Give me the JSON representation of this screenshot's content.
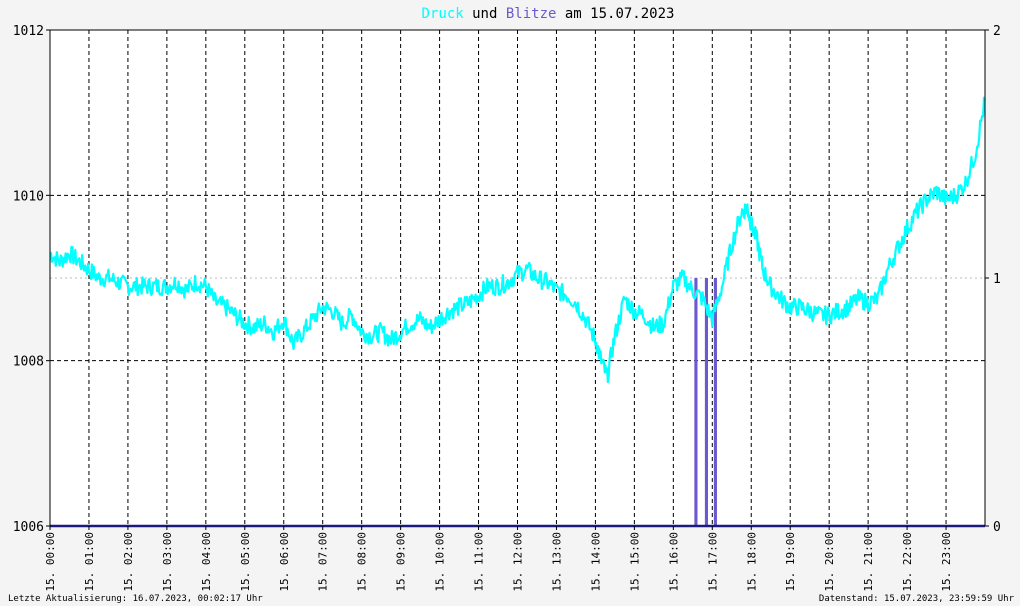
{
  "title": {
    "part1": "Druck",
    "part2": " und ",
    "part3": "Blitze",
    "part4": " am 15.07.2023",
    "color_druck": "#00ffff",
    "color_blitze": "#6a5acd",
    "color_text": "#000000"
  },
  "footer": {
    "left": "Letzte Aktualisierung: 16.07.2023, 00:02:17 Uhr",
    "right": "Datenstand: 15.07.2023, 23:59:59 Uhr"
  },
  "chart_data": {
    "type": "line",
    "title": "Druck und Blitze am 15.07.2023",
    "x_tick_labels": [
      "15. 00:00",
      "15. 01:00",
      "15. 02:00",
      "15. 03:00",
      "15. 04:00",
      "15. 05:00",
      "15. 06:00",
      "15. 07:00",
      "15. 08:00",
      "15. 09:00",
      "15. 10:00",
      "15. 11:00",
      "15. 12:00",
      "15. 13:00",
      "15. 14:00",
      "15. 15:00",
      "15. 16:00",
      "15. 17:00",
      "15. 18:00",
      "15. 19:00",
      "15. 20:00",
      "15. 21:00",
      "15. 22:00",
      "15. 23:00"
    ],
    "xlim_hours": [
      0,
      24
    ],
    "y_left": {
      "ticks": [
        "1012",
        "1010",
        "1008",
        "1006"
      ],
      "ylim": [
        1006,
        1012
      ]
    },
    "y_right": {
      "ticks": [
        "2",
        "1",
        "0"
      ],
      "ylim": [
        0,
        2
      ]
    },
    "grid": true,
    "series": [
      {
        "name": "Druck",
        "type": "line",
        "color": "#00ffff",
        "axis": "left",
        "x": [
          0,
          0.25,
          0.5,
          0.75,
          1,
          1.25,
          1.5,
          1.75,
          2,
          2.25,
          2.5,
          2.75,
          3,
          3.25,
          3.5,
          3.75,
          4,
          4.25,
          4.5,
          4.75,
          5,
          5.25,
          5.5,
          5.75,
          6,
          6.25,
          6.5,
          6.75,
          7,
          7.25,
          7.5,
          7.75,
          8,
          8.25,
          8.5,
          8.75,
          9,
          9.25,
          9.5,
          9.75,
          10,
          10.25,
          10.5,
          10.75,
          11,
          11.25,
          11.5,
          11.75,
          12,
          12.25,
          12.5,
          12.75,
          13,
          13.25,
          13.5,
          13.75,
          14,
          14.15,
          14.3,
          14.5,
          14.75,
          15,
          15.25,
          15.5,
          15.75,
          16,
          16.25,
          16.5,
          16.75,
          17,
          17.25,
          17.5,
          17.75,
          17.9,
          18,
          18.15,
          18.3,
          18.5,
          18.75,
          19,
          19.25,
          19.5,
          19.75,
          20,
          20.25,
          20.5,
          20.75,
          21,
          21.25,
          21.5,
          21.75,
          22,
          22.25,
          22.5,
          22.75,
          23,
          23.25,
          23.5,
          23.75,
          24
        ],
        "values": [
          1009.3,
          1009.2,
          1009.3,
          1009.2,
          1009.1,
          1009.0,
          1009.0,
          1008.95,
          1008.9,
          1008.9,
          1008.9,
          1008.9,
          1008.9,
          1008.95,
          1008.85,
          1008.95,
          1008.9,
          1008.7,
          1008.65,
          1008.55,
          1008.45,
          1008.4,
          1008.45,
          1008.35,
          1008.5,
          1008.2,
          1008.35,
          1008.5,
          1008.65,
          1008.6,
          1008.45,
          1008.55,
          1008.35,
          1008.3,
          1008.35,
          1008.25,
          1008.35,
          1008.45,
          1008.5,
          1008.4,
          1008.5,
          1008.6,
          1008.65,
          1008.7,
          1008.8,
          1008.9,
          1008.9,
          1008.95,
          1009.05,
          1009.1,
          1009.0,
          1008.95,
          1008.85,
          1008.8,
          1008.7,
          1008.5,
          1008.25,
          1008.0,
          1007.8,
          1008.3,
          1008.75,
          1008.6,
          1008.55,
          1008.4,
          1008.45,
          1008.9,
          1009.0,
          1008.85,
          1008.75,
          1008.5,
          1008.9,
          1009.4,
          1009.8,
          1009.85,
          1009.65,
          1009.45,
          1009.1,
          1008.9,
          1008.75,
          1008.65,
          1008.65,
          1008.6,
          1008.55,
          1008.55,
          1008.6,
          1008.65,
          1008.75,
          1008.7,
          1008.75,
          1009.1,
          1009.35,
          1009.6,
          1009.8,
          1009.95,
          1010.05,
          1009.95,
          1010.0,
          1010.15,
          1010.5,
          1011.15
        ]
      },
      {
        "name": "Blitze",
        "type": "bar",
        "color": "#6a5acd",
        "axis": "right",
        "x": [
          16.58,
          16.85,
          17.08
        ],
        "values": [
          1,
          1,
          1
        ],
        "bar_width_hours": 0.08
      }
    ]
  }
}
